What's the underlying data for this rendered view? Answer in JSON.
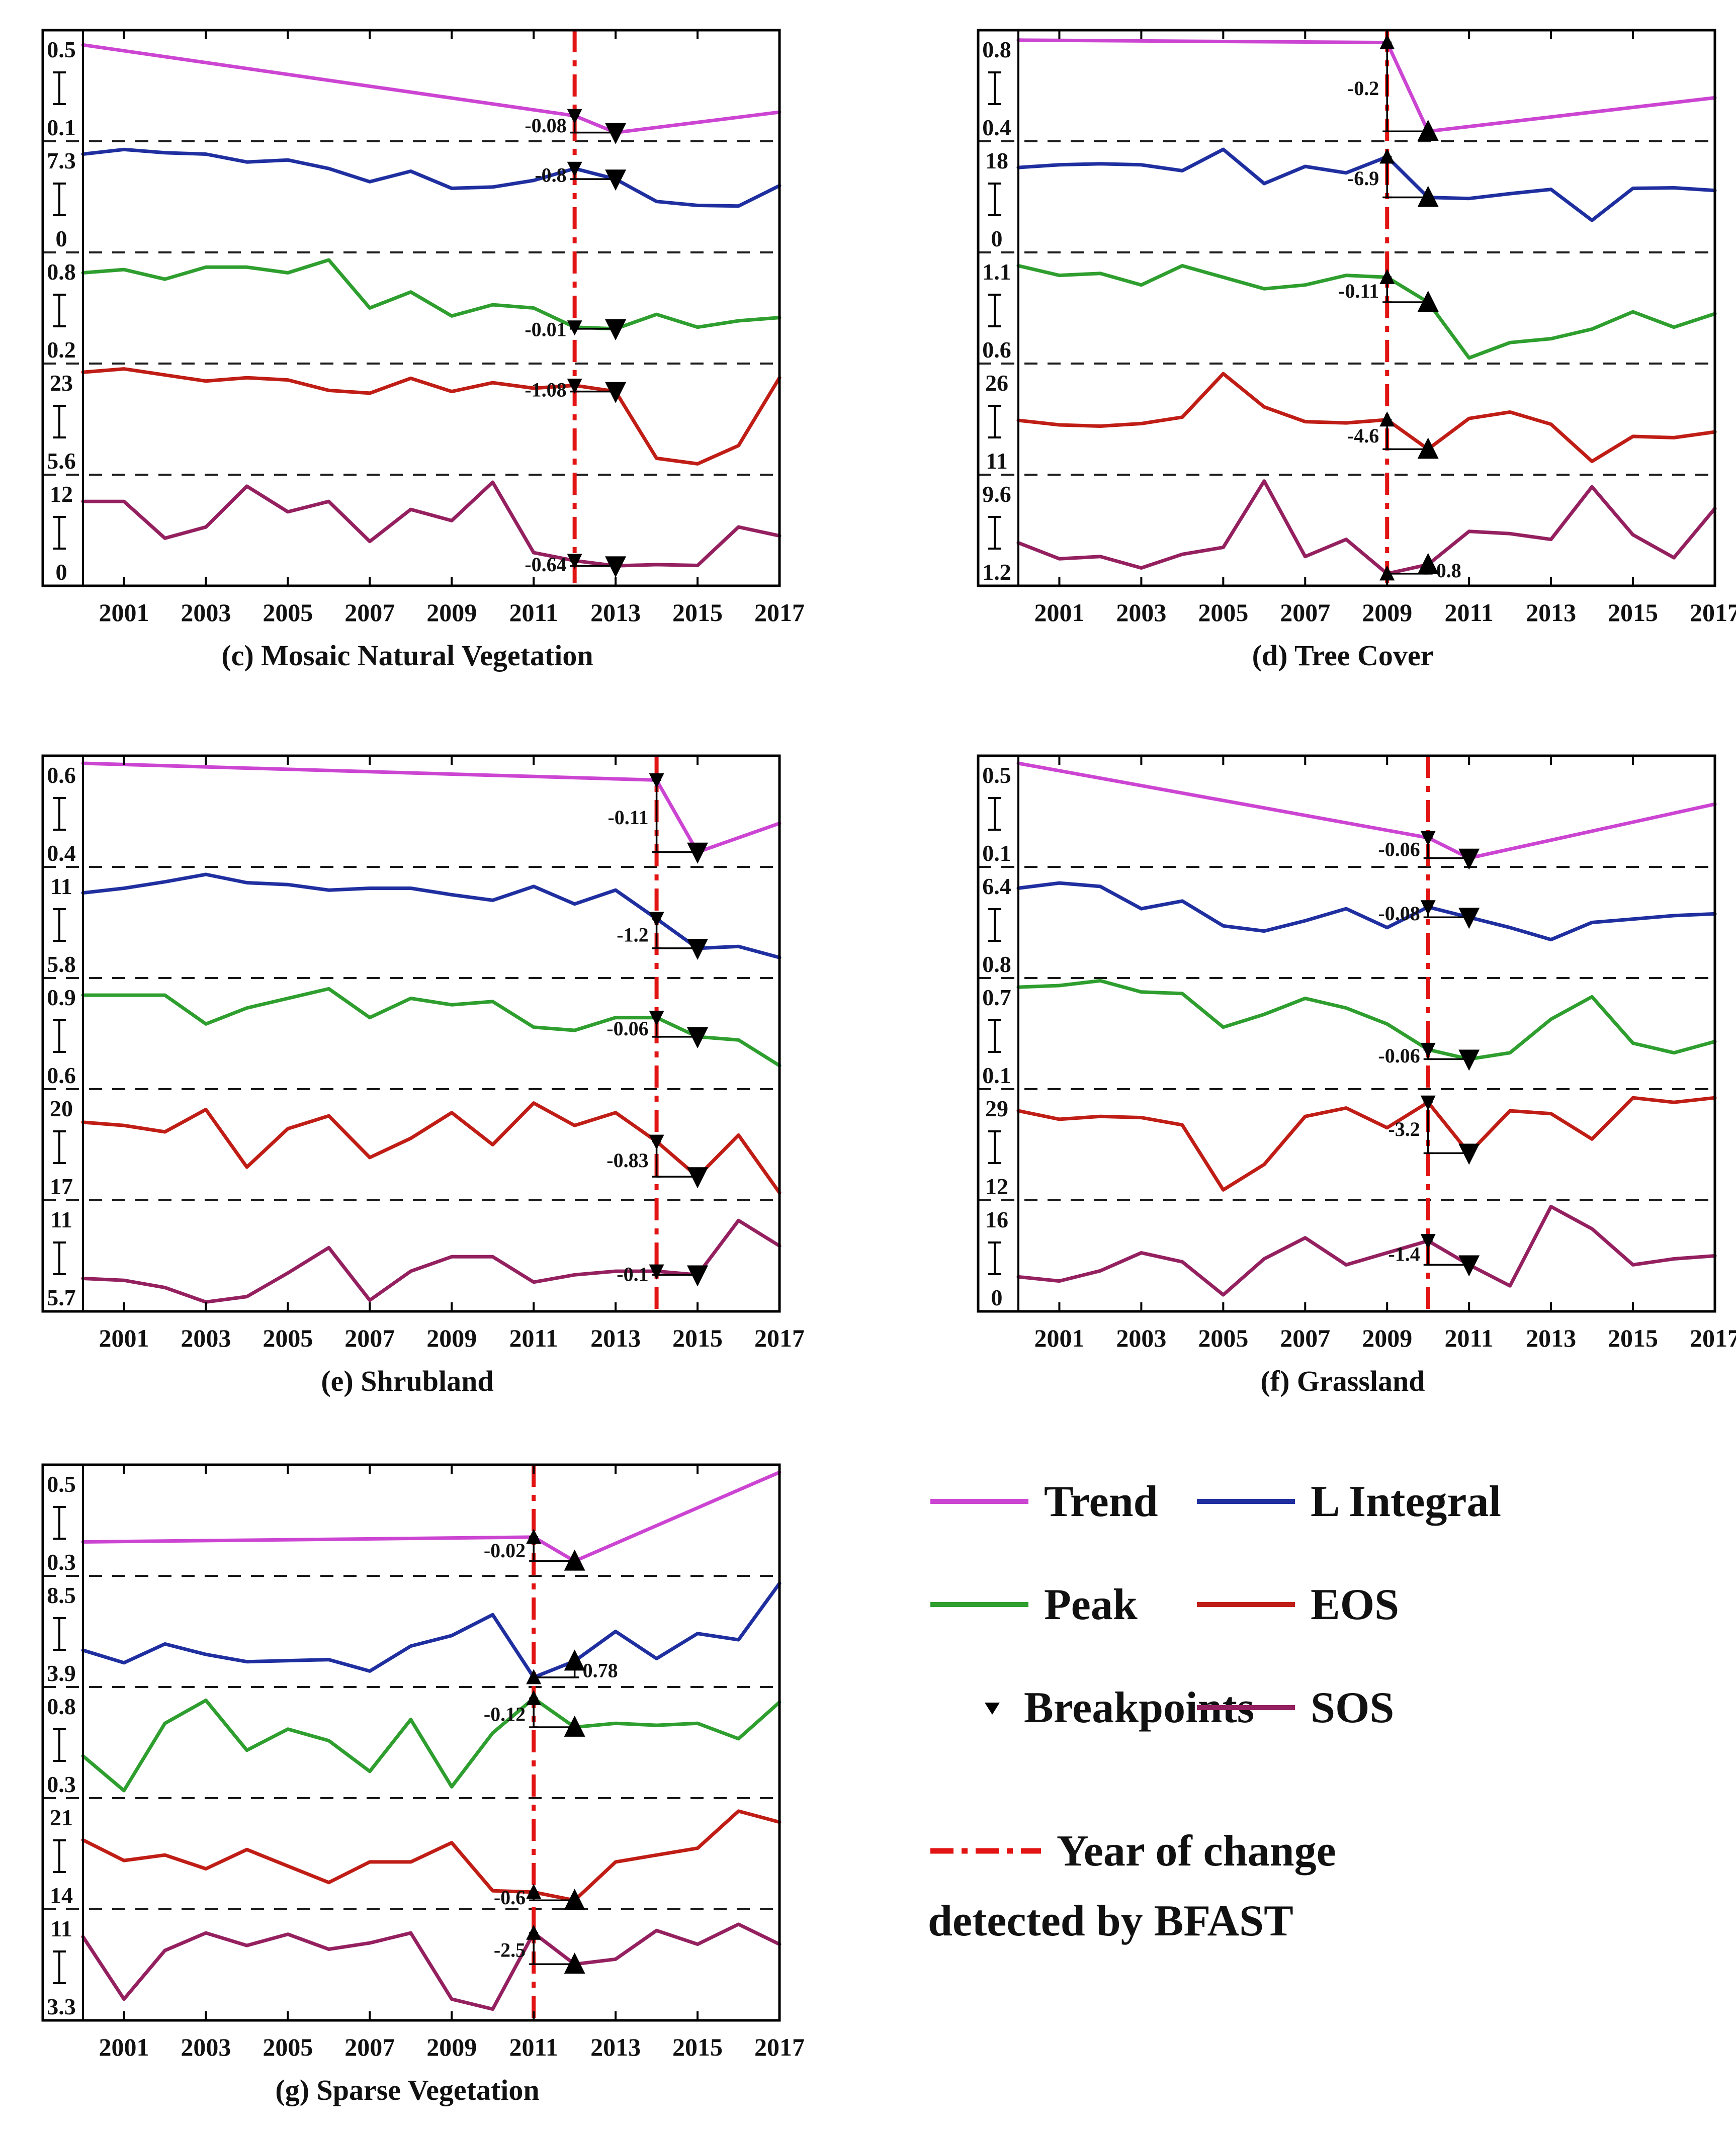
{
  "colors": {
    "trend": "#CC45D2",
    "l_integral": "#1F2FA0",
    "peak": "#2E9E2E",
    "eos": "#BF1D15",
    "sos": "#94205F",
    "bfast_line": "#E21313",
    "separator": "#1A1A1A",
    "axis": "#000000",
    "text": "#111111"
  },
  "x_axis": {
    "start_year": 2000,
    "end_year": 2017,
    "tick_labels": [
      "2001",
      "2003",
      "2005",
      "2007",
      "2009",
      "2011",
      "2013",
      "2015",
      "2017"
    ]
  },
  "legend": {
    "items": [
      {
        "label": "Trend",
        "series": "trend",
        "type": "line"
      },
      {
        "label": "L Integral",
        "series": "l_integral",
        "type": "line"
      },
      {
        "label": "Peak",
        "series": "peak",
        "type": "line"
      },
      {
        "label": "EOS",
        "series": "eos",
        "type": "line"
      },
      {
        "label": "Breakpoints",
        "series": "breakpoints",
        "type": "marker"
      },
      {
        "label": "SOS",
        "series": "sos",
        "type": "line"
      }
    ],
    "bfast": {
      "line1": "Year of change",
      "line2": "detected by BFAST",
      "type": "dashdot-line"
    }
  },
  "chart_data": [
    {
      "type": "line",
      "caption": "(c) Mosaic Natural Vegetation",
      "break_year": 2012,
      "marker_direction": "down",
      "subplots": [
        {
          "series": "trend",
          "name": "Trend",
          "ylim": [
            0.1,
            0.5
          ],
          "ymax_label": "0.5",
          "ymin_label": "0.1",
          "annotation": "-0.08",
          "points": [
            [
              2000,
              0.47
            ],
            [
              2012,
              0.175
            ],
            [
              2013,
              0.105
            ],
            [
              2017,
              0.19
            ]
          ]
        },
        {
          "series": "l_integral",
          "name": "L Integral",
          "ylim": [
            0,
            7.3
          ],
          "ymax_label": "7.3",
          "ymin_label": "0",
          "annotation": "-0.8",
          "values": [
            6.9,
            7.25,
            7.0,
            6.9,
            6.3,
            6.45,
            5.8,
            4.8,
            5.6,
            4.3,
            4.4,
            4.9,
            5.8,
            5.0,
            3.3,
            3.0,
            2.95,
            4.5
          ]
        },
        {
          "series": "peak",
          "name": "Peak",
          "ylim": [
            0.2,
            0.8
          ],
          "ymax_label": "0.8",
          "ymin_label": "0.2",
          "annotation": "-0.01",
          "values": [
            0.72,
            0.74,
            0.68,
            0.755,
            0.755,
            0.72,
            0.8,
            0.5,
            0.6,
            0.45,
            0.52,
            0.5,
            0.38,
            0.37,
            0.46,
            0.38,
            0.42,
            0.44
          ]
        },
        {
          "series": "eos",
          "name": "EOS",
          "ylim": [
            5.6,
            23
          ],
          "ymax_label": "23",
          "ymin_label": "5.6",
          "annotation": "-1.08",
          "values": [
            22.8,
            23.4,
            22.3,
            21.2,
            21.8,
            21.4,
            19.5,
            19.0,
            21.7,
            19.3,
            20.9,
            19.9,
            20.4,
            19.3,
            7.2,
            6.2,
            9.5,
            21.8
          ]
        },
        {
          "series": "sos",
          "name": "SOS",
          "ylim": [
            0,
            12
          ],
          "ymax_label": "12",
          "ymin_label": "0",
          "annotation": "-0.64",
          "values": [
            9.6,
            9.6,
            5.0,
            6.4,
            11.5,
            8.3,
            9.6,
            4.6,
            8.6,
            7.2,
            12.0,
            3.2,
            2.2,
            1.55,
            1.7,
            1.6,
            6.4,
            5.3
          ]
        }
      ]
    },
    {
      "type": "line",
      "caption": "(d) Tree Cover",
      "break_year": 2009,
      "marker_direction": "up",
      "subplots": [
        {
          "series": "trend",
          "name": "Trend",
          "ylim": [
            0.4,
            0.8
          ],
          "ymax_label": "0.8",
          "ymin_label": "0.4",
          "annotation": "-0.2",
          "points": [
            [
              2000,
              0.79
            ],
            [
              2009,
              0.78
            ],
            [
              2010,
              0.41
            ],
            [
              2017,
              0.55
            ]
          ]
        },
        {
          "series": "l_integral",
          "name": "L Integral",
          "ylim": [
            0,
            18
          ],
          "ymax_label": "18",
          "ymin_label": "0",
          "annotation": "-6.9",
          "values": [
            14.5,
            15.0,
            15.2,
            15.0,
            13.9,
            17.9,
            11.5,
            14.7,
            13.5,
            16.5,
            8.9,
            8.7,
            9.6,
            10.4,
            4.6,
            10.6,
            10.7,
            10.2
          ]
        },
        {
          "series": "peak",
          "name": "Peak",
          "ylim": [
            0.6,
            1.1
          ],
          "ymax_label": "1.1",
          "ymin_label": "0.6",
          "annotation": "-0.11",
          "values": [
            1.07,
            1.02,
            1.03,
            0.97,
            1.07,
            1.01,
            0.95,
            0.97,
            1.02,
            1.01,
            0.88,
            0.59,
            0.67,
            0.69,
            0.74,
            0.83,
            0.75,
            0.82
          ]
        },
        {
          "series": "eos",
          "name": "EOS",
          "ylim": [
            11,
            26
          ],
          "ymax_label": "26",
          "ymin_label": "11",
          "annotation": "-4.6",
          "values": [
            18.3,
            17.6,
            17.4,
            17.8,
            18.8,
            25.6,
            20.4,
            18.1,
            17.9,
            18.4,
            13.8,
            18.6,
            19.6,
            17.7,
            11.9,
            15.8,
            15.6,
            16.5
          ]
        },
        {
          "series": "sos",
          "name": "SOS",
          "ylim": [
            1.2,
            9.6
          ],
          "ymax_label": "9.6",
          "ymin_label": "1.2",
          "annotation": "0.8",
          "values": [
            4.3,
            2.9,
            3.1,
            2.1,
            3.3,
            3.9,
            9.7,
            3.1,
            4.6,
            1.6,
            2.4,
            5.3,
            5.1,
            4.6,
            9.2,
            5.0,
            3.0,
            7.3
          ]
        }
      ]
    },
    {
      "type": "line",
      "caption": "(e) Shrubland",
      "break_year": 2014,
      "marker_direction": "down",
      "subplots": [
        {
          "series": "trend",
          "name": "Trend",
          "ylim": [
            0.4,
            0.6
          ],
          "ymax_label": "0.6",
          "ymin_label": "0.4",
          "annotation": "-0.11",
          "points": [
            [
              2000,
              0.6
            ],
            [
              2014,
              0.565
            ],
            [
              2015,
              0.415
            ],
            [
              2017,
              0.475
            ]
          ]
        },
        {
          "series": "l_integral",
          "name": "L Integral",
          "ylim": [
            5.8,
            11
          ],
          "ymax_label": "11",
          "ymin_label": "5.8",
          "annotation": "-1.2",
          "values": [
            10.0,
            10.25,
            10.6,
            11.0,
            10.55,
            10.45,
            10.15,
            10.25,
            10.25,
            9.9,
            9.6,
            10.35,
            9.4,
            10.15,
            8.6,
            7.0,
            7.1,
            6.5
          ]
        },
        {
          "series": "peak",
          "name": "Peak",
          "ylim": [
            0.6,
            0.9
          ],
          "ymax_label": "0.9",
          "ymin_label": "0.6",
          "annotation": "-0.06",
          "values": [
            0.87,
            0.87,
            0.87,
            0.78,
            0.83,
            0.86,
            0.89,
            0.8,
            0.86,
            0.84,
            0.85,
            0.77,
            0.76,
            0.8,
            0.8,
            0.74,
            0.73,
            0.65
          ]
        },
        {
          "series": "eos",
          "name": "EOS",
          "ylim": [
            17,
            20
          ],
          "ymax_label": "20",
          "ymin_label": "17",
          "annotation": "-0.83",
          "values": [
            19.2,
            19.1,
            18.9,
            19.6,
            17.8,
            19.0,
            19.4,
            18.1,
            18.7,
            19.5,
            18.5,
            19.8,
            19.1,
            19.5,
            18.6,
            17.5,
            18.8,
            17.0
          ]
        },
        {
          "series": "sos",
          "name": "SOS",
          "ylim": [
            5.7,
            11
          ],
          "ymax_label": "11",
          "ymin_label": "5.7",
          "annotation": "-0.1",
          "values": [
            7.1,
            7.0,
            6.6,
            5.8,
            6.1,
            7.4,
            8.8,
            5.9,
            7.5,
            8.3,
            8.3,
            6.9,
            7.3,
            7.5,
            7.5,
            7.3,
            10.3,
            8.9
          ]
        }
      ]
    },
    {
      "type": "line",
      "caption": "(f) Grassland",
      "break_year": 2010,
      "marker_direction": "down",
      "subplots": [
        {
          "series": "trend",
          "name": "Trend",
          "ylim": [
            0.1,
            0.5
          ],
          "ymax_label": "0.5",
          "ymin_label": "0.1",
          "annotation": "-0.06",
          "points": [
            [
              2000,
              0.5
            ],
            [
              2010,
              0.19
            ],
            [
              2011,
              0.105
            ],
            [
              2017,
              0.33
            ]
          ]
        },
        {
          "series": "l_integral",
          "name": "L Integral",
          "ylim": [
            0.8,
            6.4
          ],
          "ymax_label": "6.4",
          "ymin_label": "0.8",
          "annotation": "-0.08",
          "values": [
            5.6,
            5.9,
            5.7,
            4.4,
            4.85,
            3.4,
            3.1,
            3.7,
            4.4,
            3.3,
            4.5,
            3.9,
            3.3,
            2.6,
            3.6,
            3.8,
            4.0,
            4.1
          ]
        },
        {
          "series": "peak",
          "name": "Peak",
          "ylim": [
            0.1,
            0.7
          ],
          "ymax_label": "0.7",
          "ymin_label": "0.1",
          "annotation": "-0.06",
          "values": [
            0.69,
            0.7,
            0.73,
            0.66,
            0.65,
            0.44,
            0.52,
            0.62,
            0.56,
            0.46,
            0.3,
            0.24,
            0.28,
            0.49,
            0.63,
            0.34,
            0.28,
            0.35
          ]
        },
        {
          "series": "eos",
          "name": "EOS",
          "ylim": [
            12,
            29
          ],
          "ymax_label": "29",
          "ymin_label": "12",
          "annotation": "-3.2",
          "values": [
            26.5,
            25.0,
            25.5,
            25.3,
            24.0,
            12.5,
            17.0,
            25.5,
            27.0,
            23.5,
            28.0,
            19.0,
            26.5,
            26.0,
            21.5,
            28.8,
            28.0,
            28.8
          ]
        },
        {
          "series": "sos",
          "name": "SOS",
          "ylim": [
            0,
            16
          ],
          "ymax_label": "16",
          "ymin_label": "0",
          "annotation": "-1.4",
          "values": [
            4.5,
            3.8,
            5.5,
            8.5,
            7.0,
            1.5,
            7.5,
            11.0,
            6.5,
            8.5,
            10.5,
            6.5,
            3.0,
            16.2,
            12.5,
            6.5,
            7.5,
            8.0
          ]
        }
      ]
    },
    {
      "type": "line",
      "caption": "(g) Sparse Vegetation",
      "break_year": 2011,
      "marker_direction": "up",
      "subplots": [
        {
          "series": "trend",
          "name": "Trend",
          "ylim": [
            0.3,
            0.5
          ],
          "ymax_label": "0.5",
          "ymin_label": "0.3",
          "annotation": "-0.02",
          "points": [
            [
              2000,
              0.355
            ],
            [
              2011,
              0.365
            ],
            [
              2012,
              0.315
            ],
            [
              2017,
              0.5
            ]
          ]
        },
        {
          "series": "l_integral",
          "name": "L Integral",
          "ylim": [
            3.9,
            8.5
          ],
          "ymax_label": "8.5",
          "ymin_label": "3.9",
          "annotation": "0.78",
          "values": [
            5.3,
            4.7,
            5.6,
            5.1,
            4.75,
            4.8,
            4.85,
            4.3,
            5.5,
            6.0,
            7.0,
            4.0,
            4.78,
            6.2,
            4.9,
            6.1,
            5.8,
            8.5
          ]
        },
        {
          "series": "peak",
          "name": "Peak",
          "ylim": [
            0.3,
            0.8
          ],
          "ymax_label": "0.8",
          "ymin_label": "0.3",
          "annotation": "-0.12",
          "values": [
            0.48,
            0.3,
            0.65,
            0.77,
            0.51,
            0.62,
            0.56,
            0.4,
            0.67,
            0.32,
            0.6,
            0.78,
            0.63,
            0.65,
            0.64,
            0.65,
            0.57,
            0.76
          ]
        },
        {
          "series": "eos",
          "name": "EOS",
          "ylim": [
            14,
            21
          ],
          "ymax_label": "21",
          "ymin_label": "14",
          "annotation": "-0.6",
          "values": [
            18.5,
            17.0,
            17.4,
            16.4,
            17.8,
            16.6,
            15.4,
            16.9,
            16.9,
            18.3,
            14.8,
            14.7,
            14.1,
            16.9,
            17.4,
            17.9,
            20.6,
            19.8
          ]
        },
        {
          "series": "sos",
          "name": "SOS",
          "ylim": [
            3.3,
            11
          ],
          "ymax_label": "11",
          "ymin_label": "3.3",
          "annotation": "-2.5",
          "values": [
            9.4,
            4.4,
            8.3,
            9.7,
            8.7,
            9.6,
            8.4,
            8.9,
            9.7,
            4.4,
            3.6,
            9.7,
            7.2,
            7.6,
            9.9,
            8.8,
            10.4,
            8.8
          ]
        }
      ]
    }
  ]
}
